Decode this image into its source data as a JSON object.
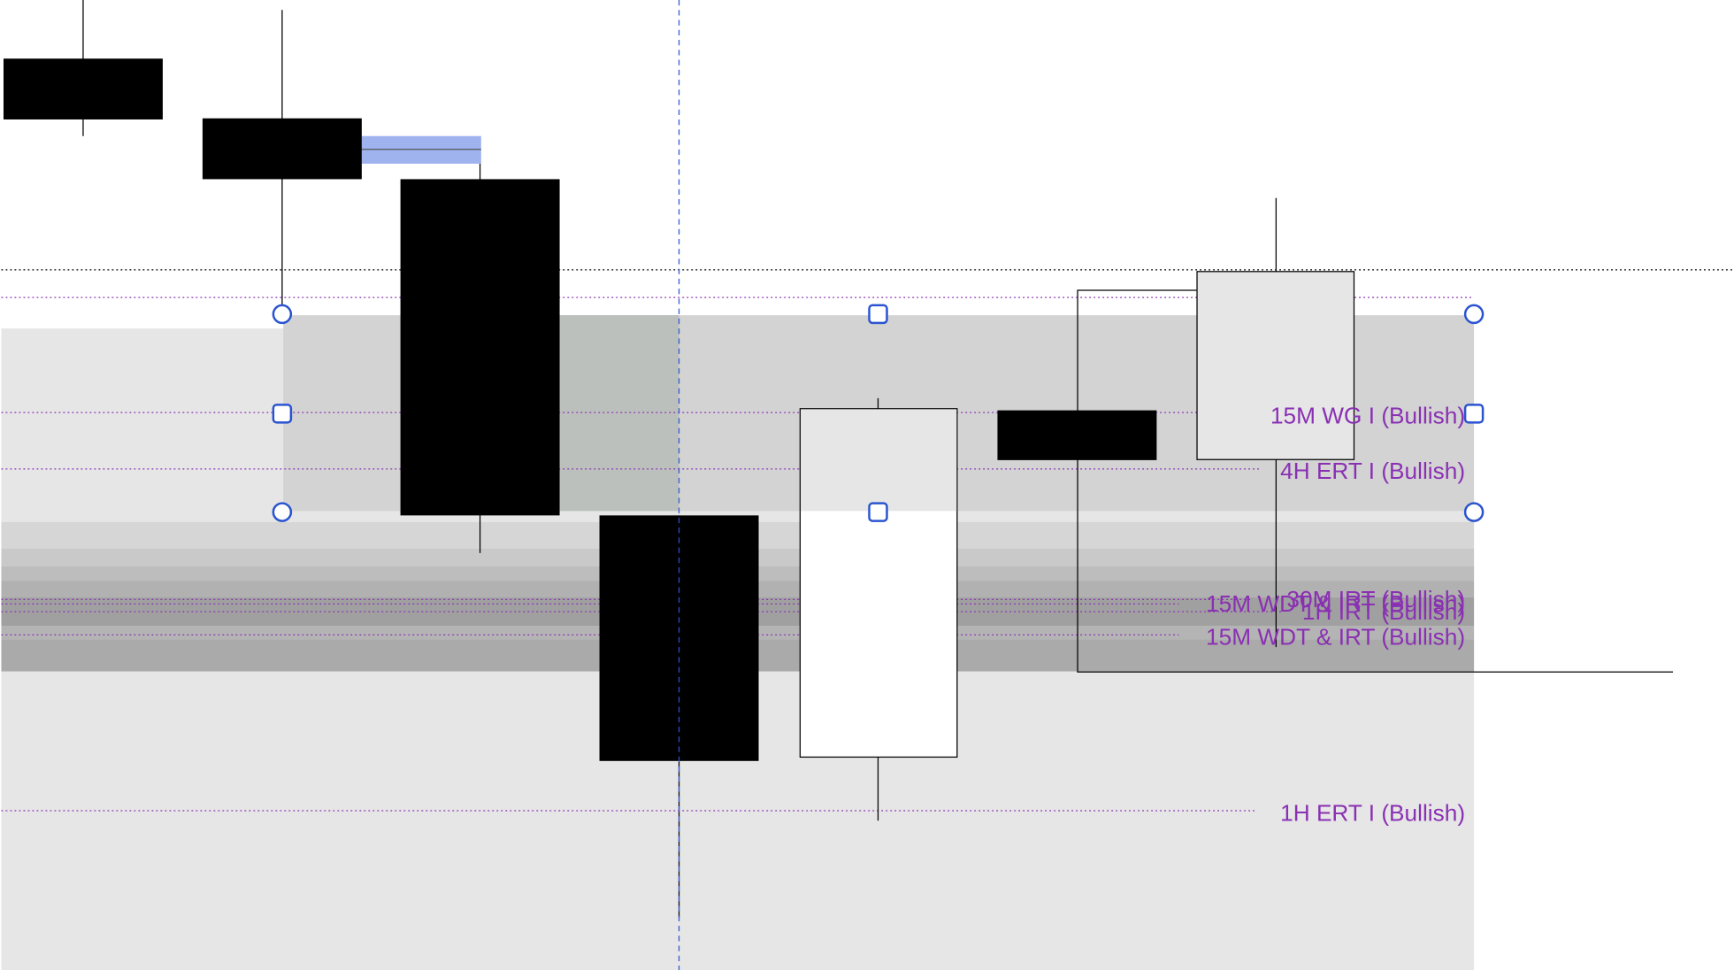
{
  "levels": [
    {
      "label": "15M WG I (Bullish)"
    },
    {
      "label": "4H ERT I (Bullish)"
    },
    {
      "label": "30M IRT (Bullish)"
    },
    {
      "label": "15M WDT & IRT (Bullish)"
    },
    {
      "label": "1H IRT (Bullish)"
    },
    {
      "label": "15M WDT & IRT (Bullish)"
    },
    {
      "label": "1H ERT I (Bullish)"
    }
  ]
}
